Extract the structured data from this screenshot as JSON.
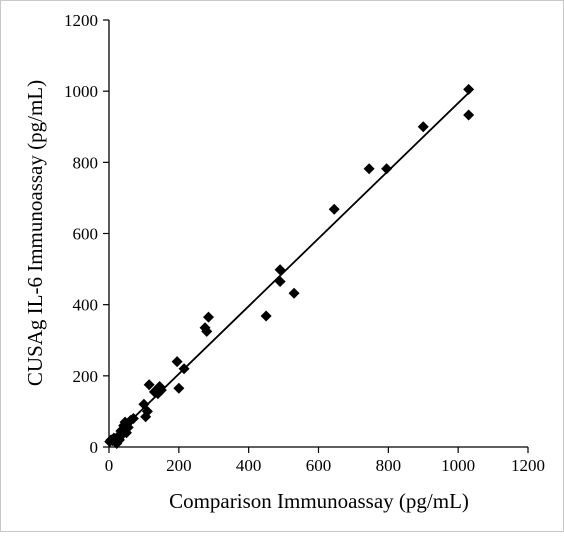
{
  "chart_data": {
    "type": "scatter",
    "xlabel": "Comparison Immunoassay (pg/mL)",
    "ylabel": "CUSAg IL-6 Immunoassay (pg/mL)",
    "xlim": [
      0,
      1200
    ],
    "ylim": [
      0,
      1200
    ],
    "xticks": [
      "0",
      "200",
      "400",
      "600",
      "800",
      "1000",
      "1200"
    ],
    "yticks": [
      "0",
      "200",
      "400",
      "600",
      "800",
      "1000",
      "1200"
    ],
    "grid": false,
    "legend": "none",
    "marker": "diamond",
    "marker_color": "#000000",
    "trendline": {
      "type": "linear",
      "x": [
        0,
        1035
      ],
      "y": [
        15,
        1000
      ]
    },
    "points": [
      {
        "x": 2,
        "y": 15
      },
      {
        "x": 6,
        "y": 20
      },
      {
        "x": 10,
        "y": 18
      },
      {
        "x": 14,
        "y": 25
      },
      {
        "x": 18,
        "y": 22
      },
      {
        "x": 22,
        "y": 10
      },
      {
        "x": 26,
        "y": 30
      },
      {
        "x": 30,
        "y": 20
      },
      {
        "x": 34,
        "y": 45
      },
      {
        "x": 38,
        "y": 35
      },
      {
        "x": 42,
        "y": 60
      },
      {
        "x": 46,
        "y": 70
      },
      {
        "x": 50,
        "y": 40
      },
      {
        "x": 55,
        "y": 55
      },
      {
        "x": 62,
        "y": 75
      },
      {
        "x": 70,
        "y": 80
      },
      {
        "x": 100,
        "y": 120
      },
      {
        "x": 105,
        "y": 85
      },
      {
        "x": 110,
        "y": 100
      },
      {
        "x": 115,
        "y": 175
      },
      {
        "x": 130,
        "y": 155
      },
      {
        "x": 140,
        "y": 150
      },
      {
        "x": 145,
        "y": 170
      },
      {
        "x": 150,
        "y": 160
      },
      {
        "x": 195,
        "y": 240
      },
      {
        "x": 200,
        "y": 165
      },
      {
        "x": 215,
        "y": 220
      },
      {
        "x": 275,
        "y": 335
      },
      {
        "x": 280,
        "y": 325
      },
      {
        "x": 285,
        "y": 365
      },
      {
        "x": 450,
        "y": 368
      },
      {
        "x": 490,
        "y": 498
      },
      {
        "x": 490,
        "y": 465
      },
      {
        "x": 530,
        "y": 432
      },
      {
        "x": 645,
        "y": 668
      },
      {
        "x": 745,
        "y": 782
      },
      {
        "x": 795,
        "y": 782
      },
      {
        "x": 900,
        "y": 900
      },
      {
        "x": 1030,
        "y": 1005
      },
      {
        "x": 1030,
        "y": 933
      }
    ]
  }
}
